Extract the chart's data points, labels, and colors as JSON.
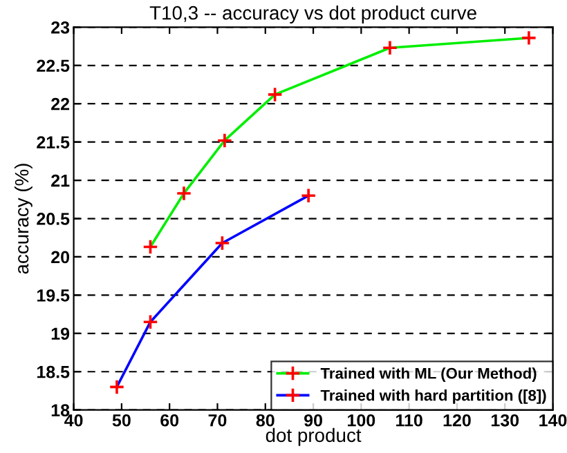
{
  "chart_data": {
    "type": "line",
    "title": "T10,3 -- accuracy vs dot product curve",
    "xlabel": "dot product",
    "ylabel": "accuracy (%)",
    "series": [
      {
        "name": "Trained with ML (Our Method)",
        "color": "#00ee00",
        "x": [
          56,
          63,
          71.5,
          82,
          106,
          135
        ],
        "values": [
          20.13,
          20.83,
          21.52,
          22.12,
          22.73,
          22.86
        ]
      },
      {
        "name": "Trained with hard partition ([8])",
        "color": "#0000ff",
        "x": [
          49,
          56,
          71,
          89
        ],
        "values": [
          18.3,
          19.15,
          20.18,
          20.8
        ]
      }
    ],
    "xlim": [
      40,
      140
    ],
    "xticks": [
      40,
      50,
      60,
      70,
      80,
      90,
      100,
      110,
      120,
      130,
      140
    ],
    "ylim": [
      18,
      23
    ],
    "yticks": [
      18,
      18.5,
      19,
      19.5,
      20,
      20.5,
      21,
      21.5,
      22,
      22.5,
      23
    ],
    "grid": "y",
    "legend": "bottom right",
    "marker": "cross",
    "line_style": "solid"
  }
}
